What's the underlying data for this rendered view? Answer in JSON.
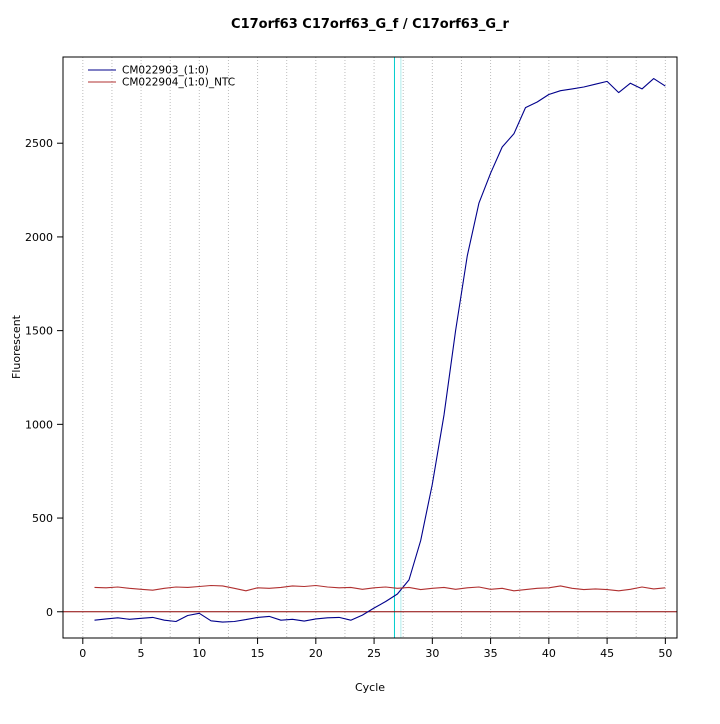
{
  "chart_data": {
    "type": "line",
    "title": "C17orf63  C17orf63_G_f / C17orf63_G_r",
    "xlabel": "Cycle",
    "ylabel": "Fluorescent",
    "xlim": [
      -1.7,
      51.0
    ],
    "ylim": [
      -140,
      2960
    ],
    "x_ticks": [
      0,
      5,
      10,
      15,
      20,
      25,
      30,
      35,
      40,
      45,
      50
    ],
    "y_ticks": [
      0,
      500,
      1000,
      1500,
      2000,
      2500
    ],
    "grid": {
      "vertical_from": 0,
      "vertical_to": 50,
      "vertical_step": 2.5,
      "color": "#bdbdbd"
    },
    "x_start": 1,
    "series": [
      {
        "name": "CM022903_(1:0)",
        "color": "#00008B",
        "values": [
          -45,
          -38,
          -32,
          -40,
          -35,
          -30,
          -45,
          -52,
          -20,
          -8,
          -48,
          -55,
          -52,
          -42,
          -30,
          -25,
          -45,
          -40,
          -50,
          -38,
          -32,
          -30,
          -45,
          -18,
          20,
          55,
          95,
          170,
          380,
          680,
          1050,
          1500,
          1900,
          2180,
          2340,
          2480,
          2550,
          2690,
          2720,
          2760,
          2780,
          2790,
          2800,
          2815,
          2830,
          2770,
          2820,
          2790,
          2845,
          2805
        ]
      },
      {
        "name": "CM022904_(1:0)_NTC",
        "color": "#B03030",
        "values": [
          130,
          128,
          132,
          125,
          120,
          115,
          125,
          132,
          130,
          135,
          140,
          138,
          125,
          112,
          128,
          125,
          130,
          138,
          135,
          140,
          132,
          128,
          130,
          120,
          128,
          132,
          125,
          130,
          118,
          125,
          130,
          120,
          128,
          132,
          120,
          125,
          112,
          118,
          125,
          128,
          138,
          125,
          118,
          122,
          118,
          112,
          120,
          132,
          122,
          128
        ]
      }
    ],
    "baseline": {
      "y": 0,
      "color": "#8B0000"
    },
    "threshold_lines": [
      {
        "x": 26.75,
        "color": "#00CDCD"
      },
      {
        "x": 27.3,
        "color": "#AEEEEE"
      }
    ],
    "legend": {
      "position": "top-left"
    }
  }
}
